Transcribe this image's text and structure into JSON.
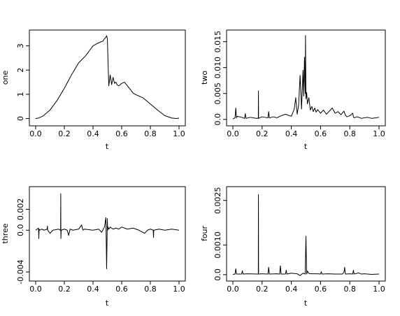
{
  "chart_data": [
    {
      "type": "line",
      "xlabel": "t",
      "ylabel": "one",
      "xlim": [
        0,
        1
      ],
      "ylim": [
        -0.1,
        3.45
      ],
      "xticks": [
        "0.0",
        "0.2",
        "0.4",
        "0.6",
        "0.8",
        "1.0"
      ],
      "xtick_values": [
        0,
        0.2,
        0.4,
        0.6,
        0.8,
        1.0
      ],
      "yticks": [
        "0",
        "1",
        "2",
        "3"
      ],
      "ytick_values": [
        0,
        1,
        2,
        3
      ],
      "series": [
        {
          "x": [
            0,
            0.02,
            0.05,
            0.1,
            0.15,
            0.2,
            0.25,
            0.3,
            0.35,
            0.4,
            0.43,
            0.45,
            0.47,
            0.48,
            0.49,
            0.495,
            0.5,
            0.51,
            0.52,
            0.53,
            0.54,
            0.55,
            0.56,
            0.57,
            0.58,
            0.6,
            0.62,
            0.64,
            0.66,
            0.68,
            0.7,
            0.72,
            0.75,
            0.8,
            0.85,
            0.9,
            0.95,
            0.98,
            1.0
          ],
          "y": [
            0.0,
            0.02,
            0.1,
            0.35,
            0.75,
            1.25,
            1.8,
            2.3,
            2.6,
            3.0,
            3.1,
            3.15,
            3.2,
            3.3,
            3.35,
            3.42,
            3.3,
            1.35,
            1.8,
            1.4,
            1.7,
            1.45,
            1.5,
            1.38,
            1.35,
            1.45,
            1.5,
            1.35,
            1.2,
            1.05,
            0.98,
            0.93,
            0.85,
            0.6,
            0.35,
            0.12,
            0.02,
            0.0,
            0.02
          ]
        }
      ]
    },
    {
      "type": "line",
      "xlabel": "t",
      "ylabel": "two",
      "xlim": [
        0,
        1
      ],
      "ylim": [
        -0.0003,
        0.0163
      ],
      "xticks": [
        "0.0",
        "0.2",
        "0.4",
        "0.6",
        "0.8",
        "1.0"
      ],
      "xtick_values": [
        0,
        0.2,
        0.4,
        0.6,
        0.8,
        1.0
      ],
      "yticks": [
        "0.0",
        "0.005",
        "0.010",
        "0.015"
      ],
      "ytick_values": [
        0,
        0.005,
        0.01,
        0.015
      ],
      "series": [
        {
          "x": [
            0,
            0.015,
            0.02,
            0.025,
            0.03,
            0.06,
            0.08,
            0.085,
            0.09,
            0.12,
            0.16,
            0.174,
            0.175,
            0.176,
            0.2,
            0.24,
            0.245,
            0.25,
            0.28,
            0.3,
            0.33,
            0.36,
            0.4,
            0.42,
            0.43,
            0.44,
            0.45,
            0.46,
            0.47,
            0.48,
            0.485,
            0.49,
            0.495,
            0.497,
            0.5,
            0.505,
            0.51,
            0.52,
            0.53,
            0.54,
            0.55,
            0.56,
            0.57,
            0.58,
            0.6,
            0.62,
            0.64,
            0.66,
            0.68,
            0.7,
            0.72,
            0.74,
            0.76,
            0.77,
            0.78,
            0.8,
            0.82,
            0.825,
            0.83,
            0.85,
            0.88,
            0.92,
            0.95,
            0.98,
            1.0
          ],
          "y": [
            0.0001,
            0.0003,
            0.0022,
            0.0003,
            0.0006,
            0.0004,
            0.0002,
            0.0011,
            0.0002,
            0.0004,
            0.0002,
            0.0002,
            0.0055,
            0.0002,
            0.0005,
            0.0003,
            0.0015,
            0.0003,
            0.0005,
            0.0003,
            0.0007,
            0.001,
            0.0006,
            0.002,
            0.0042,
            0.001,
            0.0028,
            0.0085,
            0.002,
            0.0095,
            0.0045,
            0.012,
            0.005,
            0.0162,
            0.004,
            0.0052,
            0.003,
            0.0042,
            0.0018,
            0.0025,
            0.0015,
            0.0022,
            0.0014,
            0.0019,
            0.0012,
            0.0018,
            0.001,
            0.0016,
            0.0022,
            0.0012,
            0.0015,
            0.0009,
            0.0016,
            0.0008,
            0.0005,
            0.0007,
            0.0012,
            0.0005,
            0.0003,
            0.0005,
            0.0002,
            0.0004,
            0.0002,
            0.0003,
            0.0004
          ]
        }
      ]
    },
    {
      "type": "line",
      "xlabel": "t",
      "ylabel": "three",
      "xlim": [
        0,
        1
      ],
      "ylim": [
        -0.0044,
        0.0037
      ],
      "xticks": [
        "0.0",
        "0.2",
        "0.4",
        "0.6",
        "0.8",
        "1.0"
      ],
      "xtick_values": [
        0,
        0.2,
        0.4,
        0.6,
        0.8,
        1.0
      ],
      "yticks": [
        "-0.004",
        "0.0",
        "0.002"
      ],
      "ytick_values": [
        -0.004,
        0,
        0.002
      ],
      "series": [
        {
          "x": [
            0,
            0.01,
            0.02,
            0.022,
            0.024,
            0.03,
            0.04,
            0.06,
            0.08,
            0.082,
            0.084,
            0.1,
            0.12,
            0.16,
            0.174,
            0.175,
            0.176,
            0.178,
            0.2,
            0.22,
            0.23,
            0.24,
            0.26,
            0.3,
            0.32,
            0.33,
            0.34,
            0.4,
            0.44,
            0.46,
            0.48,
            0.49,
            0.495,
            0.5,
            0.502,
            0.505,
            0.51,
            0.52,
            0.54,
            0.56,
            0.58,
            0.6,
            0.64,
            0.68,
            0.72,
            0.76,
            0.78,
            0.8,
            0.82,
            0.822,
            0.824,
            0.86,
            0.9,
            0.95,
            1.0
          ],
          "y": [
            0.0,
            0.0001,
            0.0002,
            -0.0008,
            0.0001,
            0.0,
            0.0001,
            0.0,
            0.0001,
            0.0004,
            0.0,
            -0.0003,
            0.0,
            0.0001,
            0.0,
            0.0035,
            -0.0008,
            0.0,
            0.0001,
            0.0,
            -0.0005,
            0.0001,
            0.0,
            0.0001,
            0.0005,
            0.0,
            0.0001,
            0.0,
            0.0001,
            -0.0002,
            0.0003,
            0.0012,
            -0.0037,
            0.0011,
            0.0,
            0.0003,
            0.0001,
            0.0003,
            0.0001,
            0.0002,
            0.0001,
            0.0003,
            0.0001,
            0.0002,
            0.0,
            -0.0003,
            0.0,
            0.0001,
            0.0,
            -0.0007,
            0.0,
            0.0001,
            0.0,
            0.0001,
            0.0
          ]
        }
      ]
    },
    {
      "type": "line",
      "xlabel": "t",
      "ylabel": "four",
      "xlim": [
        0,
        1
      ],
      "ylim": [
        -5e-05,
        0.0028
      ],
      "xticks": [
        "0.0",
        "0.2",
        "0.4",
        "0.6",
        "0.8",
        "1.0"
      ],
      "xtick_values": [
        0,
        0.2,
        0.4,
        0.6,
        0.8,
        1.0
      ],
      "yticks": [
        "0.0",
        "0.0010",
        "0.0025"
      ],
      "ytick_values": [
        0,
        0.001,
        0.0025
      ],
      "series": [
        {
          "x": [
            0,
            0.015,
            0.02,
            0.025,
            0.06,
            0.065,
            0.07,
            0.1,
            0.174,
            0.175,
            0.176,
            0.2,
            0.24,
            0.245,
            0.25,
            0.3,
            0.32,
            0.325,
            0.33,
            0.36,
            0.365,
            0.37,
            0.4,
            0.44,
            0.46,
            0.48,
            0.49,
            0.495,
            0.5,
            0.505,
            0.51,
            0.52,
            0.54,
            0.58,
            0.6,
            0.605,
            0.61,
            0.65,
            0.7,
            0.75,
            0.76,
            0.765,
            0.77,
            0.8,
            0.82,
            0.825,
            0.83,
            0.86,
            0.88,
            0.9,
            0.95,
            1.0
          ],
          "y": [
            1e-05,
            2e-05,
            0.0002,
            2e-05,
            2e-05,
            0.00013,
            2e-05,
            3e-05,
            2e-05,
            0.0027,
            2e-05,
            3e-05,
            2e-05,
            0.00025,
            2e-05,
            3e-05,
            2e-05,
            0.0003,
            2e-05,
            2e-05,
            0.00015,
            2e-05,
            5e-05,
            3e-05,
            -3e-05,
            5e-05,
            3e-05,
            2e-05,
            0.0013,
            2e-05,
            0.00012,
            4e-05,
            3e-05,
            3e-05,
            2e-05,
            0.0001,
            2e-05,
            3e-05,
            2e-05,
            2e-05,
            8e-05,
            0.00025,
            2e-05,
            3e-05,
            2e-05,
            0.00015,
            2e-05,
            6e-05,
            2e-05,
            3e-05,
            1e-05,
            2e-05
          ]
        }
      ]
    }
  ]
}
